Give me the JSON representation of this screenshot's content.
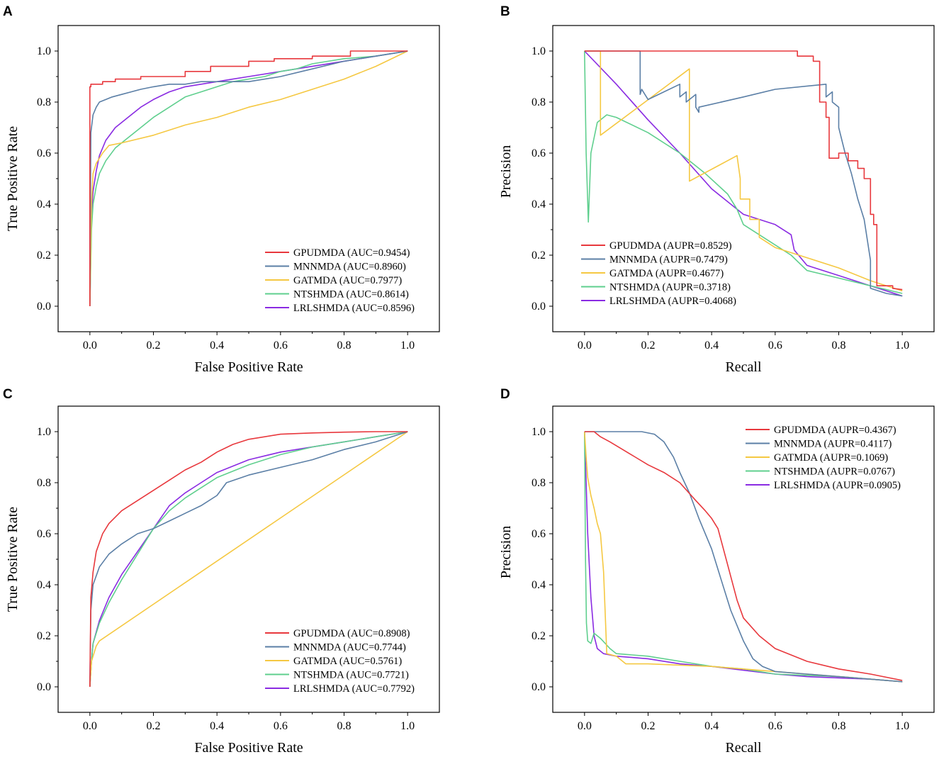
{
  "colors": {
    "GPUDMDA": "#e8383d",
    "MNNMDA": "#5b7fa6",
    "GATMDA": "#f5c842",
    "NTSHMDA": "#5fcf8e",
    "LRLSHMDA": "#8a2be2"
  },
  "chart_data": [
    {
      "panel": "A",
      "type": "line",
      "xlabel": "False Positive Rate",
      "ylabel": "True Positive Rate",
      "xlim": [
        -0.1,
        1.1
      ],
      "ylim": [
        -0.1,
        1.1
      ],
      "xticks": [
        "0.0",
        "0.2",
        "0.4",
        "0.6",
        "0.8",
        "1.0"
      ],
      "yticks": [
        "0.0",
        "0.2",
        "0.4",
        "0.6",
        "0.8",
        "1.0"
      ],
      "legend_position": "bottom-right",
      "series": [
        {
          "name": "GPUDMDA",
          "legend": "GPUDMDA (AUC=0.9454)",
          "x": [
            0,
            0,
            0.003,
            0.003,
            0.01,
            0.01,
            0.04,
            0.04,
            0.08,
            0.08,
            0.16,
            0.16,
            0.3,
            0.3,
            0.38,
            0.38,
            0.5,
            0.5,
            0.58,
            0.58,
            0.7,
            0.7,
            0.82,
            0.82,
            1.0
          ],
          "y": [
            0,
            0.86,
            0.86,
            0.87,
            0.87,
            0.87,
            0.87,
            0.88,
            0.88,
            0.89,
            0.89,
            0.9,
            0.9,
            0.92,
            0.92,
            0.94,
            0.94,
            0.96,
            0.96,
            0.97,
            0.97,
            0.98,
            0.98,
            1.0,
            1.0
          ]
        },
        {
          "name": "MNNMDA",
          "legend": "MNNMDA (AUC=0.8960)",
          "x": [
            0,
            0.003,
            0.01,
            0.02,
            0.03,
            0.05,
            0.07,
            0.1,
            0.13,
            0.16,
            0.2,
            0.25,
            0.3,
            0.35,
            0.4,
            0.5,
            0.6,
            0.7,
            0.8,
            0.9,
            1.0
          ],
          "y": [
            0,
            0.68,
            0.75,
            0.78,
            0.8,
            0.81,
            0.82,
            0.83,
            0.84,
            0.85,
            0.86,
            0.87,
            0.87,
            0.88,
            0.88,
            0.88,
            0.9,
            0.93,
            0.96,
            0.98,
            1.0
          ]
        },
        {
          "name": "GATMDA",
          "legend": "GATMDA (AUC=0.7977)",
          "x": [
            0,
            0.005,
            0.01,
            0.02,
            0.04,
            0.06,
            0.1,
            0.2,
            0.3,
            0.4,
            0.5,
            0.6,
            0.7,
            0.8,
            0.9,
            1.0
          ],
          "y": [
            0,
            0.4,
            0.52,
            0.56,
            0.6,
            0.63,
            0.64,
            0.67,
            0.71,
            0.74,
            0.78,
            0.81,
            0.85,
            0.89,
            0.94,
            1.0
          ]
        },
        {
          "name": "NTSHMDA",
          "legend": "NTSHMDA (AUC=0.8614)",
          "x": [
            0,
            0.005,
            0.01,
            0.02,
            0.03,
            0.05,
            0.08,
            0.12,
            0.16,
            0.2,
            0.25,
            0.3,
            0.35,
            0.4,
            0.45,
            0.5,
            0.55,
            0.6,
            0.65,
            0.7,
            0.8,
            0.9,
            1.0
          ],
          "y": [
            0,
            0.3,
            0.4,
            0.47,
            0.52,
            0.57,
            0.62,
            0.66,
            0.7,
            0.74,
            0.78,
            0.82,
            0.84,
            0.86,
            0.88,
            0.89,
            0.9,
            0.92,
            0.93,
            0.95,
            0.97,
            0.98,
            1.0
          ]
        },
        {
          "name": "LRLSHMDA",
          "legend": "LRLSHMDA (AUC=0.8596)",
          "x": [
            0,
            0.005,
            0.01,
            0.02,
            0.03,
            0.05,
            0.08,
            0.12,
            0.16,
            0.2,
            0.25,
            0.3,
            0.35,
            0.4,
            0.45,
            0.5,
            0.6,
            0.7,
            0.8,
            0.9,
            1.0
          ],
          "y": [
            0,
            0.35,
            0.45,
            0.53,
            0.59,
            0.65,
            0.7,
            0.74,
            0.78,
            0.81,
            0.84,
            0.86,
            0.87,
            0.88,
            0.89,
            0.9,
            0.92,
            0.94,
            0.96,
            0.98,
            1.0
          ]
        }
      ]
    },
    {
      "panel": "B",
      "type": "line",
      "xlabel": "Recall",
      "ylabel": "Precision",
      "xlim": [
        -0.1,
        1.1
      ],
      "ylim": [
        -0.1,
        1.1
      ],
      "xticks": [
        "0.0",
        "0.2",
        "0.4",
        "0.6",
        "0.8",
        "1.0"
      ],
      "yticks": [
        "0.0",
        "0.2",
        "0.4",
        "0.6",
        "0.8",
        "1.0"
      ],
      "legend_position": "bottom-left",
      "series": [
        {
          "name": "GPUDMDA",
          "legend": "GPUDMDA (AUPR=0.8529)",
          "x": [
            0,
            0.67,
            0.67,
            0.72,
            0.72,
            0.74,
            0.74,
            0.76,
            0.76,
            0.77,
            0.77,
            0.8,
            0.8,
            0.83,
            0.83,
            0.86,
            0.86,
            0.88,
            0.88,
            0.9,
            0.9,
            0.91,
            0.91,
            0.92,
            0.92,
            0.97,
            0.97,
            1.0
          ],
          "y": [
            1.0,
            1.0,
            0.98,
            0.98,
            0.96,
            0.96,
            0.8,
            0.8,
            0.74,
            0.74,
            0.58,
            0.58,
            0.6,
            0.6,
            0.57,
            0.57,
            0.54,
            0.54,
            0.5,
            0.5,
            0.36,
            0.36,
            0.32,
            0.32,
            0.08,
            0.08,
            0.07,
            0.065
          ]
        },
        {
          "name": "MNNMDA",
          "legend": "MNNMDA (AUPR=0.7479)",
          "x": [
            0,
            0.17,
            0.175,
            0.175,
            0.18,
            0.2,
            0.3,
            0.3,
            0.32,
            0.32,
            0.35,
            0.35,
            0.36,
            0.36,
            0.5,
            0.6,
            0.76,
            0.76,
            0.78,
            0.78,
            0.8,
            0.8,
            0.82,
            0.84,
            0.86,
            0.88,
            0.9,
            0.9,
            0.95,
            1.0
          ],
          "y": [
            1.0,
            1.0,
            1.0,
            0.83,
            0.85,
            0.81,
            0.87,
            0.82,
            0.84,
            0.8,
            0.83,
            0.78,
            0.76,
            0.78,
            0.82,
            0.85,
            0.87,
            0.82,
            0.84,
            0.8,
            0.78,
            0.7,
            0.6,
            0.52,
            0.42,
            0.34,
            0.18,
            0.07,
            0.05,
            0.04
          ]
        },
        {
          "name": "GATMDA",
          "legend": "GATMDA (AUPR=0.4677)",
          "x": [
            0,
            0.04,
            0.04,
            0.05,
            0.05,
            0.33,
            0.33,
            0.42,
            0.48,
            0.49,
            0.49,
            0.52,
            0.52,
            0.55,
            0.55,
            0.6,
            0.7,
            0.8,
            0.9,
            1.0
          ],
          "y": [
            1.0,
            1.0,
            1.0,
            1.0,
            0.67,
            0.93,
            0.49,
            0.55,
            0.59,
            0.5,
            0.42,
            0.42,
            0.34,
            0.34,
            0.27,
            0.23,
            0.19,
            0.15,
            0.1,
            0.06
          ]
        },
        {
          "name": "NTSHMDA",
          "legend": "NTSHMDA (AUPR=0.3718)",
          "x": [
            0,
            0.005,
            0.012,
            0.02,
            0.04,
            0.07,
            0.1,
            0.2,
            0.3,
            0.38,
            0.45,
            0.48,
            0.5,
            0.55,
            0.6,
            0.65,
            0.7,
            0.8,
            0.9,
            1.0
          ],
          "y": [
            1.0,
            0.6,
            0.33,
            0.6,
            0.72,
            0.75,
            0.74,
            0.68,
            0.6,
            0.52,
            0.44,
            0.38,
            0.32,
            0.28,
            0.24,
            0.2,
            0.14,
            0.11,
            0.08,
            0.05
          ]
        },
        {
          "name": "LRLSHMDA",
          "legend": "LRLSHMDA (AUPR=0.4068)",
          "x": [
            0,
            0.1,
            0.2,
            0.3,
            0.4,
            0.5,
            0.6,
            0.65,
            0.66,
            0.7,
            0.8,
            0.9,
            1.0
          ],
          "y": [
            1.0,
            0.87,
            0.73,
            0.6,
            0.46,
            0.36,
            0.32,
            0.28,
            0.22,
            0.16,
            0.12,
            0.08,
            0.04
          ]
        }
      ]
    },
    {
      "panel": "C",
      "type": "line",
      "xlabel": "False Positive Rate",
      "ylabel": "True Positive Rate",
      "xlim": [
        -0.1,
        1.1
      ],
      "ylim": [
        -0.1,
        1.1
      ],
      "xticks": [
        "0.0",
        "0.2",
        "0.4",
        "0.6",
        "0.8",
        "1.0"
      ],
      "yticks": [
        "0.0",
        "0.2",
        "0.4",
        "0.6",
        "0.8",
        "1.0"
      ],
      "legend_position": "bottom-right",
      "series": [
        {
          "name": "GPUDMDA",
          "legend": "GPUDMDA (AUC=0.8908)",
          "x": [
            0,
            0.003,
            0.01,
            0.02,
            0.04,
            0.06,
            0.1,
            0.15,
            0.2,
            0.25,
            0.3,
            0.35,
            0.4,
            0.45,
            0.5,
            0.6,
            0.7,
            0.8,
            0.9,
            1.0
          ],
          "y": [
            0,
            0.35,
            0.45,
            0.53,
            0.6,
            0.64,
            0.69,
            0.73,
            0.77,
            0.81,
            0.85,
            0.88,
            0.92,
            0.95,
            0.97,
            0.99,
            0.995,
            0.998,
            1.0,
            1.0
          ]
        },
        {
          "name": "MNNMDA",
          "legend": "MNNMDA (AUC=0.7744)",
          "x": [
            0,
            0.003,
            0.01,
            0.03,
            0.06,
            0.1,
            0.15,
            0.2,
            0.25,
            0.3,
            0.35,
            0.4,
            0.43,
            0.5,
            0.6,
            0.7,
            0.8,
            0.9,
            1.0
          ],
          "y": [
            0,
            0.3,
            0.4,
            0.47,
            0.52,
            0.56,
            0.6,
            0.62,
            0.65,
            0.68,
            0.71,
            0.75,
            0.8,
            0.83,
            0.86,
            0.89,
            0.93,
            0.96,
            1.0
          ]
        },
        {
          "name": "GATMDA",
          "legend": "GATMDA (AUC=0.5761)",
          "x": [
            0,
            0.005,
            0.02,
            0.03,
            1.0
          ],
          "y": [
            0,
            0.1,
            0.16,
            0.18,
            1.0
          ]
        },
        {
          "name": "NTSHMDA",
          "legend": "NTSHMDA (AUC=0.7721)",
          "x": [
            0,
            0.005,
            0.01,
            0.03,
            0.06,
            0.1,
            0.15,
            0.2,
            0.25,
            0.3,
            0.35,
            0.4,
            0.5,
            0.6,
            0.7,
            0.8,
            0.9,
            1.0
          ],
          "y": [
            0,
            0.1,
            0.17,
            0.25,
            0.33,
            0.42,
            0.52,
            0.62,
            0.69,
            0.74,
            0.78,
            0.82,
            0.87,
            0.91,
            0.94,
            0.96,
            0.98,
            1.0
          ]
        },
        {
          "name": "LRLSHMDA",
          "legend": "LRLSHMDA (AUC=0.7792)",
          "x": [
            0,
            0.005,
            0.01,
            0.03,
            0.06,
            0.1,
            0.15,
            0.2,
            0.25,
            0.3,
            0.35,
            0.4,
            0.5,
            0.6,
            0.7,
            0.8,
            0.9,
            1.0
          ],
          "y": [
            0,
            0.1,
            0.17,
            0.26,
            0.35,
            0.44,
            0.53,
            0.62,
            0.71,
            0.76,
            0.8,
            0.84,
            0.89,
            0.92,
            0.94,
            0.96,
            0.98,
            1.0
          ]
        }
      ]
    },
    {
      "panel": "D",
      "type": "line",
      "xlabel": "Recall",
      "ylabel": "Precision",
      "xlim": [
        -0.1,
        1.1
      ],
      "ylim": [
        -0.1,
        1.1
      ],
      "xticks": [
        "0.0",
        "0.2",
        "0.4",
        "0.6",
        "0.8",
        "1.0"
      ],
      "yticks": [
        "0.0",
        "0.2",
        "0.4",
        "0.6",
        "0.8",
        "1.0"
      ],
      "legend_position": "top-right",
      "series": [
        {
          "name": "GPUDMDA",
          "legend": "GPUDMDA (AUPR=0.4367)",
          "x": [
            0,
            0.03,
            0.05,
            0.08,
            0.12,
            0.16,
            0.2,
            0.25,
            0.3,
            0.35,
            0.38,
            0.4,
            0.42,
            0.45,
            0.48,
            0.5,
            0.55,
            0.6,
            0.7,
            0.8,
            0.9,
            1.0
          ],
          "y": [
            1.0,
            1.0,
            0.98,
            0.96,
            0.93,
            0.9,
            0.87,
            0.84,
            0.8,
            0.73,
            0.69,
            0.66,
            0.62,
            0.48,
            0.34,
            0.27,
            0.2,
            0.15,
            0.1,
            0.07,
            0.05,
            0.025
          ]
        },
        {
          "name": "MNNMDA",
          "legend": "MNNMDA (AUPR=0.4117)",
          "x": [
            0,
            0.18,
            0.22,
            0.25,
            0.28,
            0.3,
            0.33,
            0.36,
            0.4,
            0.43,
            0.46,
            0.5,
            0.53,
            0.56,
            0.6,
            0.7,
            0.8,
            0.9,
            1.0
          ],
          "y": [
            1.0,
            1.0,
            0.99,
            0.96,
            0.9,
            0.84,
            0.76,
            0.66,
            0.54,
            0.42,
            0.3,
            0.18,
            0.11,
            0.08,
            0.06,
            0.05,
            0.04,
            0.03,
            0.02
          ]
        },
        {
          "name": "GATMDA",
          "legend": "GATMDA (AUPR=0.1069)",
          "x": [
            0,
            0.005,
            0.01,
            0.02,
            0.03,
            0.04,
            0.05,
            0.06,
            0.07,
            0.1,
            0.13,
            0.2,
            0.3,
            0.4,
            0.5,
            0.6,
            0.7,
            0.8,
            0.9,
            1.0
          ],
          "y": [
            1.0,
            0.9,
            0.82,
            0.75,
            0.7,
            0.64,
            0.6,
            0.45,
            0.13,
            0.12,
            0.09,
            0.09,
            0.085,
            0.08,
            0.07,
            0.06,
            0.05,
            0.04,
            0.03,
            0.02
          ]
        },
        {
          "name": "NTSHMDA",
          "legend": "NTSHMDA (AUPR=0.0767)",
          "x": [
            0,
            0.003,
            0.006,
            0.01,
            0.02,
            0.03,
            0.05,
            0.08,
            0.1,
            0.2,
            0.3,
            0.4,
            0.5,
            0.6,
            0.7,
            0.8,
            0.9,
            1.0
          ],
          "y": [
            1.0,
            0.5,
            0.25,
            0.18,
            0.17,
            0.21,
            0.19,
            0.15,
            0.13,
            0.12,
            0.1,
            0.08,
            0.07,
            0.05,
            0.045,
            0.04,
            0.03,
            0.02
          ]
        },
        {
          "name": "LRLSHMDA",
          "legend": "LRLSHMDA (AUPR=0.0905)",
          "x": [
            0,
            0.005,
            0.01,
            0.02,
            0.03,
            0.04,
            0.06,
            0.1,
            0.2,
            0.3,
            0.4,
            0.5,
            0.6,
            0.7,
            0.8,
            0.9,
            1.0
          ],
          "y": [
            1.0,
            0.8,
            0.6,
            0.35,
            0.2,
            0.15,
            0.13,
            0.12,
            0.11,
            0.09,
            0.08,
            0.065,
            0.05,
            0.04,
            0.035,
            0.03,
            0.02
          ]
        }
      ]
    }
  ]
}
